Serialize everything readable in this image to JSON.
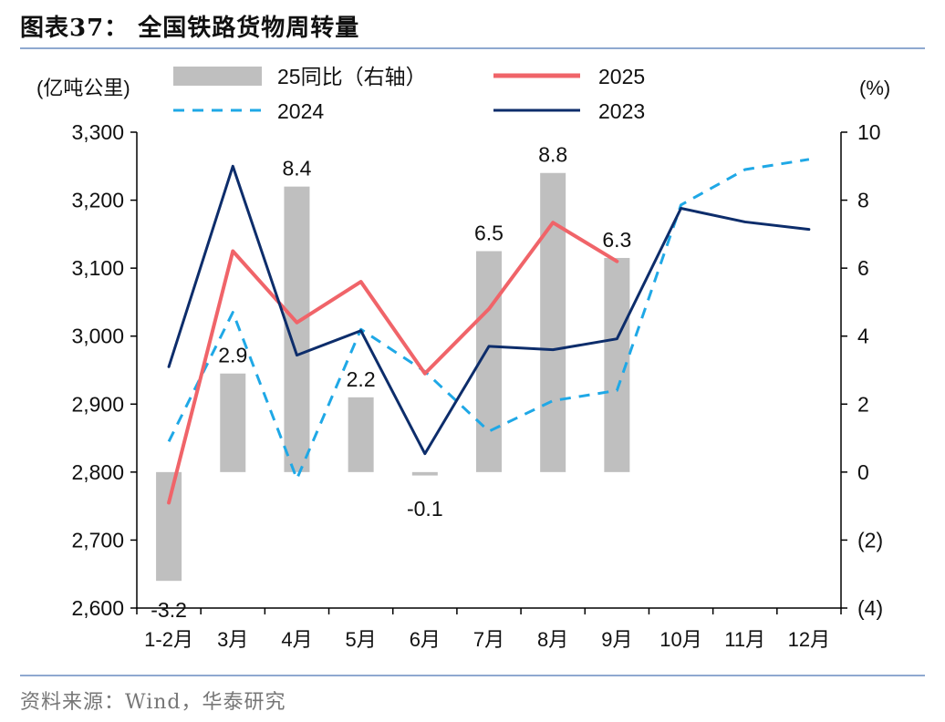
{
  "title": "图表37：  全国铁路货物周转量",
  "source": "资料来源：Wind，华泰研究",
  "chart_data": {
    "type": "bar+line",
    "categories": [
      "1-2月",
      "3月",
      "4月",
      "5月",
      "6月",
      "7月",
      "8月",
      "9月",
      "10月",
      "11月",
      "12月"
    ],
    "left_axis": {
      "unit_label": "(亿吨公里)",
      "ylim": [
        2600,
        3300
      ],
      "ticks": [
        2600,
        2700,
        2800,
        2900,
        3000,
        3100,
        3200,
        3300
      ],
      "tick_labels": [
        "2,600",
        "2,700",
        "2,800",
        "2,900",
        "3,000",
        "3,100",
        "3,200",
        "3,300"
      ]
    },
    "right_axis": {
      "unit_label": "(%)",
      "ylim": [
        -4,
        10
      ],
      "ticks": [
        -4,
        -2,
        0,
        2,
        4,
        6,
        8,
        10
      ],
      "tick_labels": [
        "(4)",
        "(2)",
        "0",
        "2",
        "4",
        "6",
        "8",
        "10"
      ]
    },
    "bar_series": {
      "name": "25同比（右轴）",
      "color": "#bfbfbf",
      "values": [
        -3.2,
        2.9,
        8.4,
        2.2,
        -0.1,
        6.5,
        8.8,
        6.3
      ],
      "labels": [
        "-3.2",
        "2.9",
        "8.4",
        "2.2",
        "-0.1",
        "6.5",
        "8.8",
        "6.3"
      ]
    },
    "line_series": [
      {
        "name": "2025",
        "color": "#f06469",
        "style": "solid",
        "values": [
          2755,
          3125,
          3020,
          3080,
          2945,
          3040,
          3167,
          3110
        ]
      },
      {
        "name": "2024",
        "color": "#1fa8e6",
        "style": "dashed",
        "values": [
          2845,
          3035,
          2790,
          3010,
          2948,
          2860,
          2905,
          2920,
          3193,
          3245,
          3260
        ]
      },
      {
        "name": "2023",
        "color": "#0d2d6b",
        "style": "solid",
        "values": [
          2955,
          3250,
          2972,
          3008,
          2827,
          2985,
          2980,
          2996,
          3188,
          3168,
          3157
        ]
      }
    ]
  }
}
